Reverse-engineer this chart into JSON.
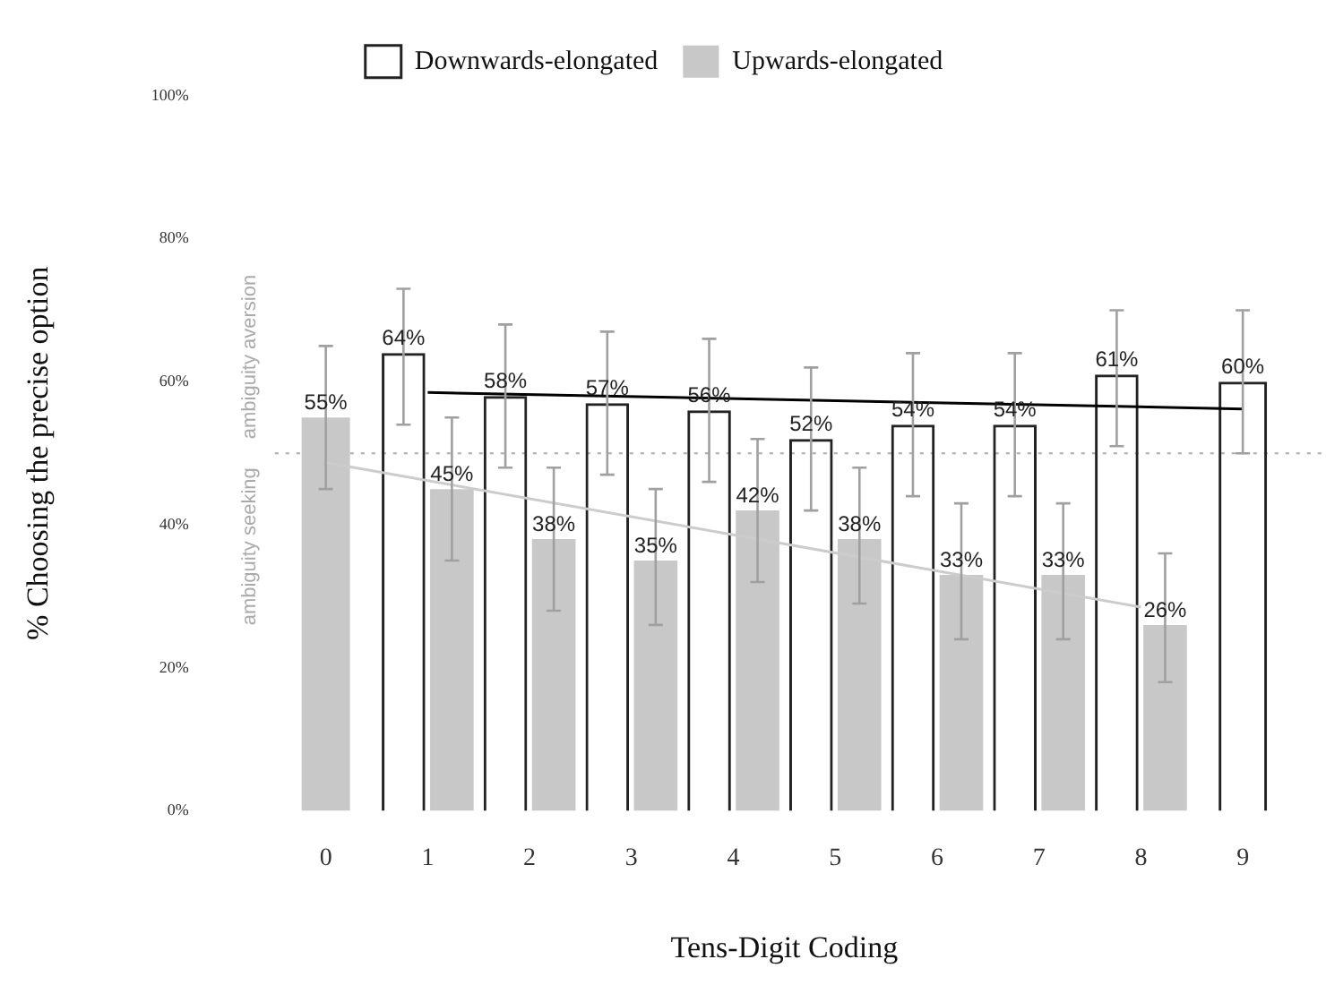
{
  "chart_data": {
    "type": "bar",
    "xlabel": "Tens-Digit Coding",
    "ylabel": "% Choosing the precise option",
    "categories": [
      "0",
      "1",
      "2",
      "3",
      "4",
      "5",
      "6",
      "7",
      "8",
      "9"
    ],
    "ylim": [
      0,
      100
    ],
    "yticks": [
      {
        "value": 0,
        "label": "0%"
      },
      {
        "value": 20,
        "label": "20%"
      },
      {
        "value": 40,
        "label": "40%"
      },
      {
        "value": 60,
        "label": "60%"
      },
      {
        "value": 80,
        "label": "80%"
      },
      {
        "value": 100,
        "label": "100%"
      }
    ],
    "grid": false,
    "legend": "top",
    "series": [
      {
        "name": "Downwards-elongated",
        "color": "#222222",
        "values": [
          null,
          64,
          58,
          57,
          56,
          52,
          54,
          54,
          61,
          60
        ],
        "errors": [
          null,
          [
            54,
            73
          ],
          [
            48,
            68
          ],
          [
            47,
            67
          ],
          [
            46,
            66
          ],
          [
            42,
            62
          ],
          [
            44,
            64
          ],
          [
            44,
            64
          ],
          [
            51,
            70
          ],
          [
            50,
            70
          ]
        ],
        "value_labels": [
          null,
          "64%",
          "58%",
          "57%",
          "56%",
          "52%",
          "54%",
          "54%",
          "61%",
          "60%"
        ]
      },
      {
        "name": "Upwards-elongated",
        "color": "#c8c8c8",
        "values": [
          55,
          45,
          38,
          35,
          42,
          38,
          33,
          33,
          26,
          null
        ],
        "errors": [
          [
            45,
            65
          ],
          [
            35,
            55
          ],
          [
            28,
            48
          ],
          [
            26,
            45
          ],
          [
            32,
            52
          ],
          [
            29,
            48
          ],
          [
            24,
            43
          ],
          [
            24,
            43
          ],
          [
            18,
            36
          ],
          null
        ],
        "value_labels": [
          "55%",
          "45%",
          "38%",
          "35%",
          "42%",
          "38%",
          "33%",
          "33%",
          "26%",
          null
        ]
      },
      {
        "type": "line",
        "color": "#000000",
        "x": [
          "1",
          "9"
        ],
        "values": [
          58.5,
          56.2
        ]
      },
      {
        "type": "line",
        "color": "#cccccc",
        "x": [
          "0",
          "8"
        ],
        "values": [
          48.7,
          28.5
        ]
      }
    ],
    "ref_lines": [
      {
        "axis": "y",
        "value": 50,
        "color": "#aaaaaa",
        "line_style": "dotted"
      }
    ],
    "annotations": [
      "ambiguity aversion",
      "ambiguity seeking"
    ]
  }
}
